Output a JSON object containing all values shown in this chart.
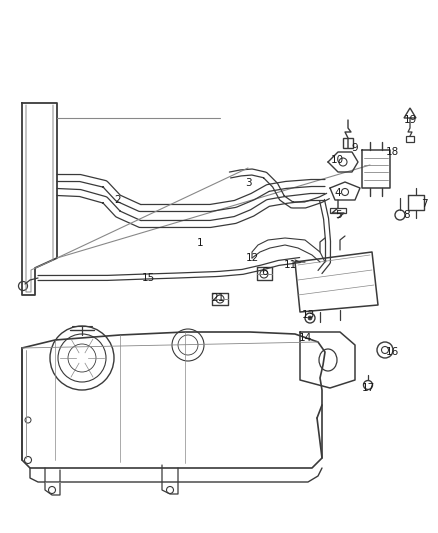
{
  "bg": "#ffffff",
  "lc": "#3a3a3a",
  "fig_w": 4.38,
  "fig_h": 5.33,
  "dpi": 100,
  "labels": [
    {
      "n": "1",
      "ix": 200,
      "iy": 243
    },
    {
      "n": "2",
      "ix": 118,
      "iy": 200
    },
    {
      "n": "3",
      "ix": 248,
      "iy": 183
    },
    {
      "n": "4",
      "ix": 338,
      "iy": 193
    },
    {
      "n": "5",
      "ix": 338,
      "iy": 215
    },
    {
      "n": "6",
      "ix": 265,
      "iy": 272
    },
    {
      "n": "7",
      "ix": 424,
      "iy": 204
    },
    {
      "n": "8",
      "ix": 407,
      "iy": 215
    },
    {
      "n": "9",
      "ix": 355,
      "iy": 148
    },
    {
      "n": "10",
      "ix": 337,
      "iy": 160
    },
    {
      "n": "11",
      "ix": 290,
      "iy": 265
    },
    {
      "n": "12",
      "ix": 252,
      "iy": 258
    },
    {
      "n": "13",
      "ix": 308,
      "iy": 315
    },
    {
      "n": "14",
      "ix": 305,
      "iy": 338
    },
    {
      "n": "15",
      "ix": 148,
      "iy": 278
    },
    {
      "n": "16",
      "ix": 392,
      "iy": 352
    },
    {
      "n": "17",
      "ix": 368,
      "iy": 388
    },
    {
      "n": "18",
      "ix": 392,
      "iy": 152
    },
    {
      "n": "19",
      "ix": 410,
      "iy": 120
    },
    {
      "n": "21",
      "ix": 218,
      "iy": 298
    }
  ]
}
